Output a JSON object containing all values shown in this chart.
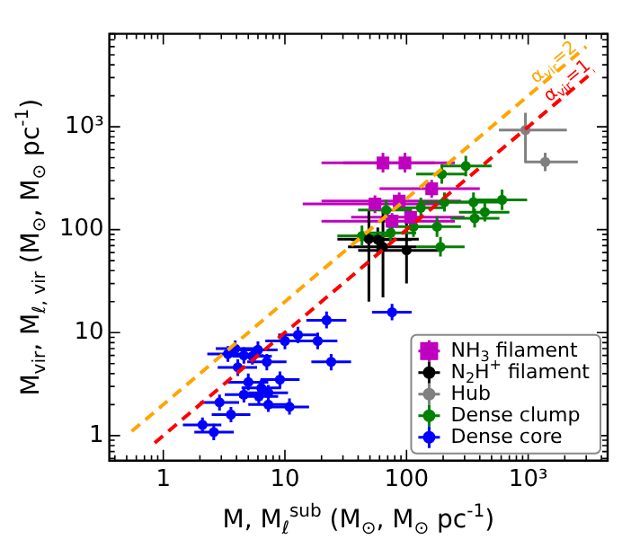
{
  "chart_data": {
    "type": "scatter",
    "xlabel": "M, M$_{ℓ}$$^{sub}$ (M$_{⊙}$, M$_{⊙}$ pc$^{-1}$)",
    "ylabel": "M$_{vir}$, M$_{ℓ, vir}$ (M$_{⊙}$, M$_{⊙}$ pc$^{-1}$)",
    "log": "xy",
    "grid": false,
    "legend": "bottom right",
    "xlim": [
      0.36,
      4500
    ],
    "ylim": [
      0.57,
      8000
    ],
    "xticks": [
      {
        "value": 0.4,
        "label": null
      },
      {
        "value": 0.5,
        "label": null
      },
      {
        "value": 0.6,
        "label": null
      },
      {
        "value": 0.7,
        "label": null
      },
      {
        "value": 0.8,
        "label": null
      },
      {
        "value": 0.9,
        "label": null
      },
      1,
      {
        "value": 2,
        "label": null
      },
      {
        "value": 3,
        "label": null
      },
      {
        "value": 4,
        "label": null
      },
      {
        "value": 5,
        "label": null
      },
      {
        "value": 6,
        "label": null
      },
      {
        "value": 7,
        "label": null
      },
      {
        "value": 8,
        "label": null
      },
      {
        "value": 9,
        "label": null
      },
      10,
      {
        "value": 20,
        "label": null
      },
      {
        "value": 30,
        "label": null
      },
      {
        "value": 40,
        "label": null
      },
      {
        "value": 50,
        "label": null
      },
      {
        "value": 60,
        "label": null
      },
      {
        "value": 70,
        "label": null
      },
      {
        "value": 80,
        "label": null
      },
      {
        "value": 90,
        "label": null
      },
      100,
      {
        "value": 200,
        "label": null
      },
      {
        "value": 300,
        "label": null
      },
      {
        "value": 400,
        "label": null
      },
      {
        "value": 500,
        "label": null
      },
      {
        "value": 600,
        "label": null
      },
      {
        "value": 700,
        "label": null
      },
      {
        "value": 800,
        "label": null
      },
      {
        "value": 900,
        "label": null
      },
      {
        "value": 1000,
        "label": "10³"
      },
      {
        "value": 2000,
        "label": null
      },
      {
        "value": 3000,
        "label": null
      },
      {
        "value": 4000,
        "label": null
      }
    ],
    "yticks": [
      {
        "value": 0.6,
        "label": null
      },
      {
        "value": 0.7,
        "label": null
      },
      {
        "value": 0.8,
        "label": null
      },
      {
        "value": 0.9,
        "label": null
      },
      1,
      {
        "value": 2,
        "label": null
      },
      {
        "value": 3,
        "label": null
      },
      {
        "value": 4,
        "label": null
      },
      {
        "value": 5,
        "label": null
      },
      {
        "value": 6,
        "label": null
      },
      {
        "value": 7,
        "label": null
      },
      {
        "value": 8,
        "label": null
      },
      {
        "value": 9,
        "label": null
      },
      10,
      {
        "value": 20,
        "label": null
      },
      {
        "value": 30,
        "label": null
      },
      {
        "value": 40,
        "label": null
      },
      {
        "value": 50,
        "label": null
      },
      {
        "value": 60,
        "label": null
      },
      {
        "value": 70,
        "label": null
      },
      {
        "value": 80,
        "label": null
      },
      {
        "value": 90,
        "label": null
      },
      100,
      {
        "value": 200,
        "label": null
      },
      {
        "value": 300,
        "label": null
      },
      {
        "value": 400,
        "label": null
      },
      {
        "value": 500,
        "label": null
      },
      {
        "value": 600,
        "label": null
      },
      {
        "value": 700,
        "label": null
      },
      {
        "value": 800,
        "label": null
      },
      {
        "value": 900,
        "label": null
      },
      {
        "value": 1000,
        "label": "10³"
      },
      {
        "value": 2000,
        "label": null
      },
      {
        "value": 3000,
        "label": null
      },
      {
        "value": 4000,
        "label": null
      },
      {
        "value": 5000,
        "label": null
      },
      {
        "value": 6000,
        "label": null
      },
      {
        "value": 7000,
        "label": null
      },
      {
        "value": 8000,
        "label": null
      }
    ],
    "annotations": [
      {
        "text": "α$_{vir}$=2",
        "x": 1780,
        "y": 3700
      },
      {
        "text": "α$_{vir}$=1",
        "x": 2300,
        "y": 2450
      }
    ],
    "series": [
      {
        "type": "line",
        "color": "#ffa500",
        "line_style": "dashed",
        "marker": "none",
        "x": [
          0.55,
          3000
        ],
        "values": [
          1.1,
          6000
        ]
      },
      {
        "type": "line",
        "color": "#ff0000",
        "line_style": "dashed",
        "marker": "none",
        "x": [
          0.85,
          3500
        ],
        "values": [
          0.85,
          3500
        ]
      },
      {
        "name": "NH$_{3}$ filament",
        "type": "scatter",
        "color": "#bf00bf",
        "marker": "square",
        "x": [
          64,
          97,
          161,
          55,
          87,
          76,
          108
        ],
        "values": [
          445,
          445,
          250,
          178,
          190,
          121,
          132
        ],
        "xerrors": [
          [
            20,
            170
          ],
          [
            30,
            250
          ],
          [
            60,
            400
          ],
          [
            14,
            200
          ],
          [
            20,
            280
          ],
          [
            20,
            250
          ],
          [
            35,
            300
          ]
        ],
        "errors": [
          [
            360,
            560
          ],
          [
            360,
            560
          ],
          [
            205,
            305
          ],
          [
            145,
            215
          ],
          [
            155,
            230
          ],
          [
            100,
            145
          ],
          [
            108,
            160
          ]
        ]
      },
      {
        "name": "N$_{2}$H$^{+}$ filament",
        "type": "scatter",
        "color": "#000000",
        "marker": "circle",
        "x": [
          49,
          58,
          64,
          100
        ],
        "values": [
          81,
          80,
          68,
          63
        ],
        "xerrors": [
          [
            27,
            126
          ],
          [
            35,
            110
          ],
          [
            33,
            120
          ],
          [
            40,
            190
          ]
        ],
        "errors": [
          [
            20,
            155
          ],
          [
            60,
            105
          ],
          [
            22,
            150
          ],
          [
            30,
            120
          ]
        ]
      },
      {
        "name": "Hub",
        "type": "scatter",
        "color": "#808080",
        "marker": "circle",
        "x": [
          950,
          1380
        ],
        "values": [
          930,
          455
        ],
        "xerrors": [
          [
            575,
            2080
          ],
          [
            930,
            2560
          ]
        ],
        "errors": [
          [
            455,
            1370
          ],
          [
            370,
            560
          ]
        ]
      },
      {
        "name": "Dense clump",
        "type": "scatter",
        "color": "#008000",
        "marker": "circle",
        "x": [
          307,
          195,
          131,
          205,
          355,
          610,
          440,
          363,
          68,
          74,
          178,
          190,
          114,
          43
        ],
        "values": [
          415,
          347,
          163,
          185,
          185,
          195,
          148,
          129,
          155,
          93,
          107,
          68,
          107,
          87
        ],
        "xerrors": [
          [
            190,
            500
          ],
          [
            120,
            310
          ],
          [
            80,
            210
          ],
          [
            125,
            330
          ],
          [
            220,
            570
          ],
          [
            380,
            980
          ],
          [
            270,
            700
          ],
          [
            230,
            580
          ],
          [
            40,
            110
          ],
          [
            45,
            120
          ],
          [
            110,
            280
          ],
          [
            120,
            300
          ],
          [
            70,
            180
          ],
          [
            27,
            70
          ]
        ],
        "errors": [
          [
            330,
            520
          ],
          [
            280,
            430
          ],
          [
            130,
            205
          ],
          [
            150,
            230
          ],
          [
            150,
            230
          ],
          [
            155,
            245
          ],
          [
            120,
            185
          ],
          [
            105,
            160
          ],
          [
            125,
            195
          ],
          [
            75,
            115
          ],
          [
            85,
            135
          ],
          [
            55,
            85
          ],
          [
            85,
            135
          ],
          [
            70,
            110
          ]
        ]
      },
      {
        "name": "Dense core",
        "type": "scatter",
        "color": "#0000ff",
        "marker": "circle",
        "x": [
          22,
          12.8,
          10,
          18.6,
          24,
          7.1,
          6.0,
          3.9,
          3.4,
          4.6,
          5.4,
          4.1,
          9.1,
          5.0,
          6.4,
          4.6,
          6.1,
          7.3,
          2.9,
          7.3,
          10.9,
          3.6,
          2.1,
          2.6,
          76
        ],
        "values": [
          13.2,
          9.5,
          8.3,
          8.3,
          5.2,
          5.2,
          6.8,
          7.0,
          6.2,
          6.0,
          5.9,
          4.6,
          3.5,
          3.3,
          2.9,
          2.5,
          2.4,
          2.6,
          2.1,
          2.0,
          1.9,
          1.6,
          1.27,
          1.08,
          15.8
        ],
        "xerrors": [
          [
            15,
            32
          ],
          [
            8.8,
            18.5
          ],
          [
            6.9,
            14.5
          ],
          [
            12.8,
            27
          ],
          [
            16.5,
            35
          ],
          [
            4.9,
            10.3
          ],
          [
            4.1,
            8.7
          ],
          [
            2.7,
            5.7
          ],
          [
            2.3,
            4.9
          ],
          [
            3.2,
            6.7
          ],
          [
            3.7,
            7.8
          ],
          [
            2.8,
            5.9
          ],
          [
            6.3,
            13.2
          ],
          [
            3.4,
            7.3
          ],
          [
            4.4,
            9.3
          ],
          [
            3.2,
            6.7
          ],
          [
            4.2,
            8.8
          ],
          [
            5,
            10.6
          ],
          [
            2,
            4.2
          ],
          [
            5,
            10.6
          ],
          [
            7.5,
            15.8
          ],
          [
            2.5,
            5.2
          ],
          [
            1.45,
            3
          ],
          [
            1.8,
            3.8
          ],
          [
            52,
            110
          ]
        ],
        "errors": [
          [
            11,
            16
          ],
          [
            7.9,
            11.4
          ],
          [
            6.9,
            10
          ],
          [
            6.9,
            10
          ],
          [
            4.3,
            6.2
          ],
          [
            4.3,
            6.2
          ],
          [
            5.7,
            8.2
          ],
          [
            5.8,
            8.4
          ],
          [
            5.2,
            7.4
          ],
          [
            5,
            7.2
          ],
          [
            4.9,
            7.1
          ],
          [
            3.8,
            5.5
          ],
          [
            2.9,
            4.2
          ],
          [
            2.75,
            4
          ],
          [
            2.4,
            3.5
          ],
          [
            2.1,
            3
          ],
          [
            2,
            2.9
          ],
          [
            2.2,
            3.1
          ],
          [
            1.75,
            2.5
          ],
          [
            1.7,
            2.4
          ],
          [
            1.6,
            2.3
          ],
          [
            1.35,
            1.9
          ],
          [
            1.06,
            1.5
          ],
          [
            0.9,
            1.3
          ],
          [
            13.2,
            19
          ]
        ]
      }
    ]
  }
}
